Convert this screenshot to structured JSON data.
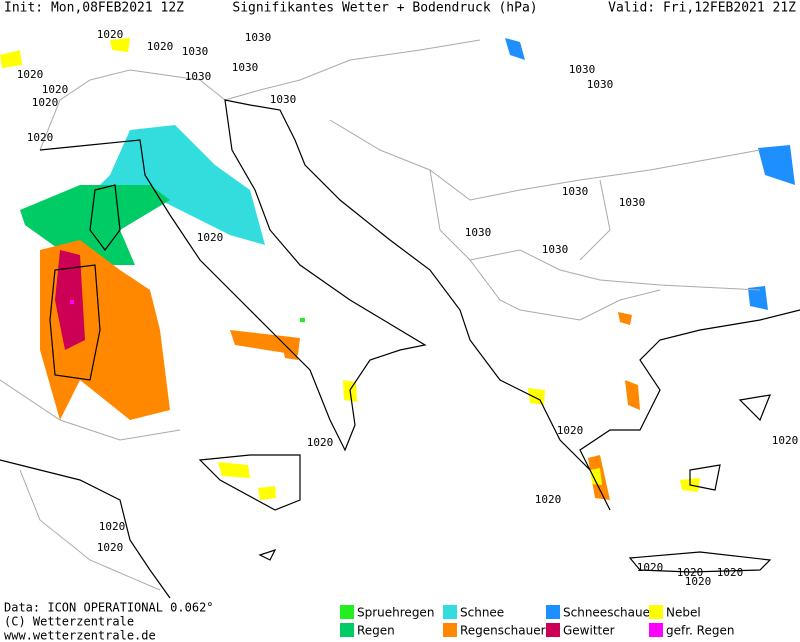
{
  "header": {
    "init": "Init: Mon,08FEB2021 12Z",
    "title": "Signifikantes Wetter +  Bodendruck (hPa)",
    "valid": "Valid: Fri,12FEB2021 21Z"
  },
  "isobar_labels": [
    "1030",
    "1020",
    "1020",
    "1030",
    "1020",
    "1030",
    "1030",
    "1020",
    "1020",
    "1030",
    "1030",
    "1030",
    "1020",
    "1030",
    "1030",
    "1020",
    "1030",
    "1030",
    "1020",
    "1020",
    "1020",
    "1020",
    "1020",
    "1020",
    "1020",
    "1020",
    "1020",
    "1020"
  ],
  "footer": {
    "data": "Data: ICON OPERATIONAL 0.062°",
    "copyright": "(C) Wetterzentrale",
    "url": "www.wetterzentrale.de"
  },
  "legend": [
    {
      "name": "Spruehregen",
      "color": "#22ee22"
    },
    {
      "name": "Regen",
      "color": "#00cc66"
    },
    {
      "name": "Schnee",
      "color": "#33dddd"
    },
    {
      "name": "Regenschauer",
      "color": "#ff8800"
    },
    {
      "name": "Schneeschauer",
      "color": "#1e8fff"
    },
    {
      "name": "Gewitter",
      "color": "#cc0055"
    },
    {
      "name": "Nebel",
      "color": "#ffff00"
    },
    {
      "name": "gefr. Regen",
      "color": "#ff00ff"
    }
  ]
}
